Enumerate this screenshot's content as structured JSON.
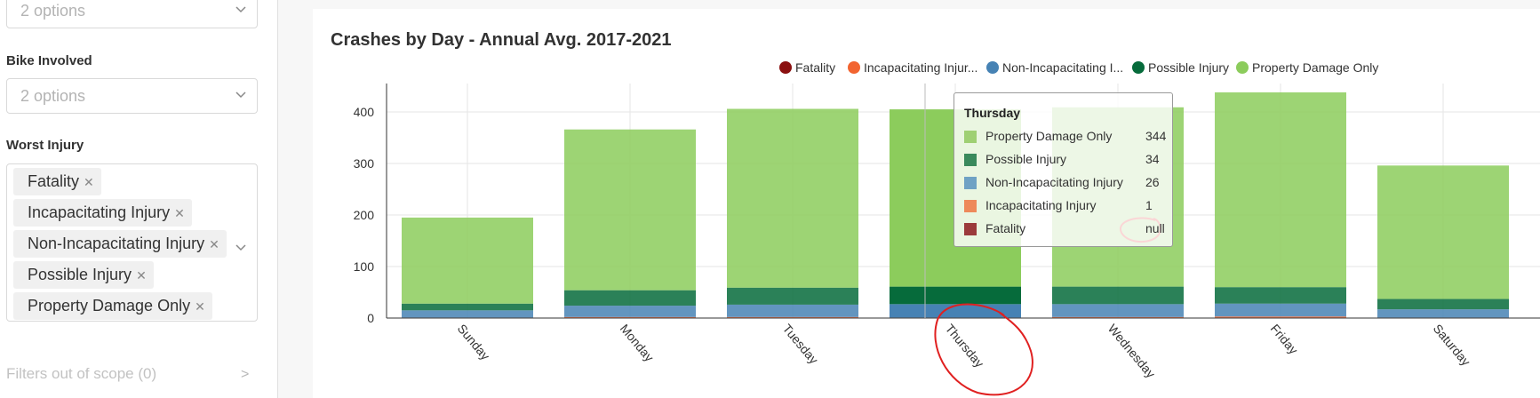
{
  "filters": {
    "top_select_placeholder": "2 options",
    "bike_label": "Bike Involved",
    "bike_placeholder": "2 options",
    "injury_label": "Worst Injury",
    "injury_tags": [
      "Fatality",
      "Incapacitating Injury",
      "Non-Incapacitating Injury",
      "Possible Injury",
      "Property Damage Only"
    ],
    "out_of_scope": "Filters out of scope (0)",
    "out_of_scope_arrow": ">"
  },
  "tooltip": {
    "title": "Thursday",
    "rows": [
      {
        "name": "Property Damage Only",
        "value": "344",
        "color": "#9fd073"
      },
      {
        "name": "Possible Injury",
        "value": "34",
        "color": "#3a8a5c"
      },
      {
        "name": "Non-Incapacitating Injury",
        "value": "26",
        "color": "#6fa2c4"
      },
      {
        "name": "Incapacitating Injury",
        "value": "1",
        "color": "#ee8a5a"
      },
      {
        "name": "Fatality",
        "value": "null",
        "color": "#9b3b3b"
      }
    ]
  },
  "chart_data": {
    "type": "bar",
    "stacked": true,
    "title": "Crashes by Day - Annual Avg. 2017-2021",
    "categories": [
      "Sunday",
      "Monday",
      "Tuesday",
      "Thursday",
      "Wednesday",
      "Friday",
      "Saturday"
    ],
    "highlighted_category": "Thursday",
    "ylim": [
      0,
      440
    ],
    "yticks": [
      "0",
      "100",
      "200",
      "300",
      "400"
    ],
    "grid": true,
    "legend_position": "top-right",
    "legend": [
      "Fatality",
      "Incapacitating Injur...",
      "Non-Incapacitating I...",
      "Possible Injury",
      "Property Damage Only"
    ],
    "series": [
      {
        "name": "Fatality",
        "color": "#8b1010",
        "values": [
          0,
          0,
          0,
          0,
          0,
          0,
          0
        ]
      },
      {
        "name": "Incapacitating Injury",
        "color": "#f26430",
        "values": [
          1,
          2,
          2,
          1,
          2,
          3,
          1
        ]
      },
      {
        "name": "Non-Incapacitating Injury",
        "color": "#4682b4",
        "values": [
          14,
          22,
          24,
          26,
          25,
          25,
          16
        ]
      },
      {
        "name": "Possible Injury",
        "color": "#066b3b",
        "values": [
          13,
          30,
          33,
          34,
          34,
          32,
          20
        ]
      },
      {
        "name": "Property Damage Only",
        "color": "#8ccc5c",
        "values": [
          167,
          312,
          347,
          344,
          348,
          378,
          259
        ]
      }
    ]
  }
}
